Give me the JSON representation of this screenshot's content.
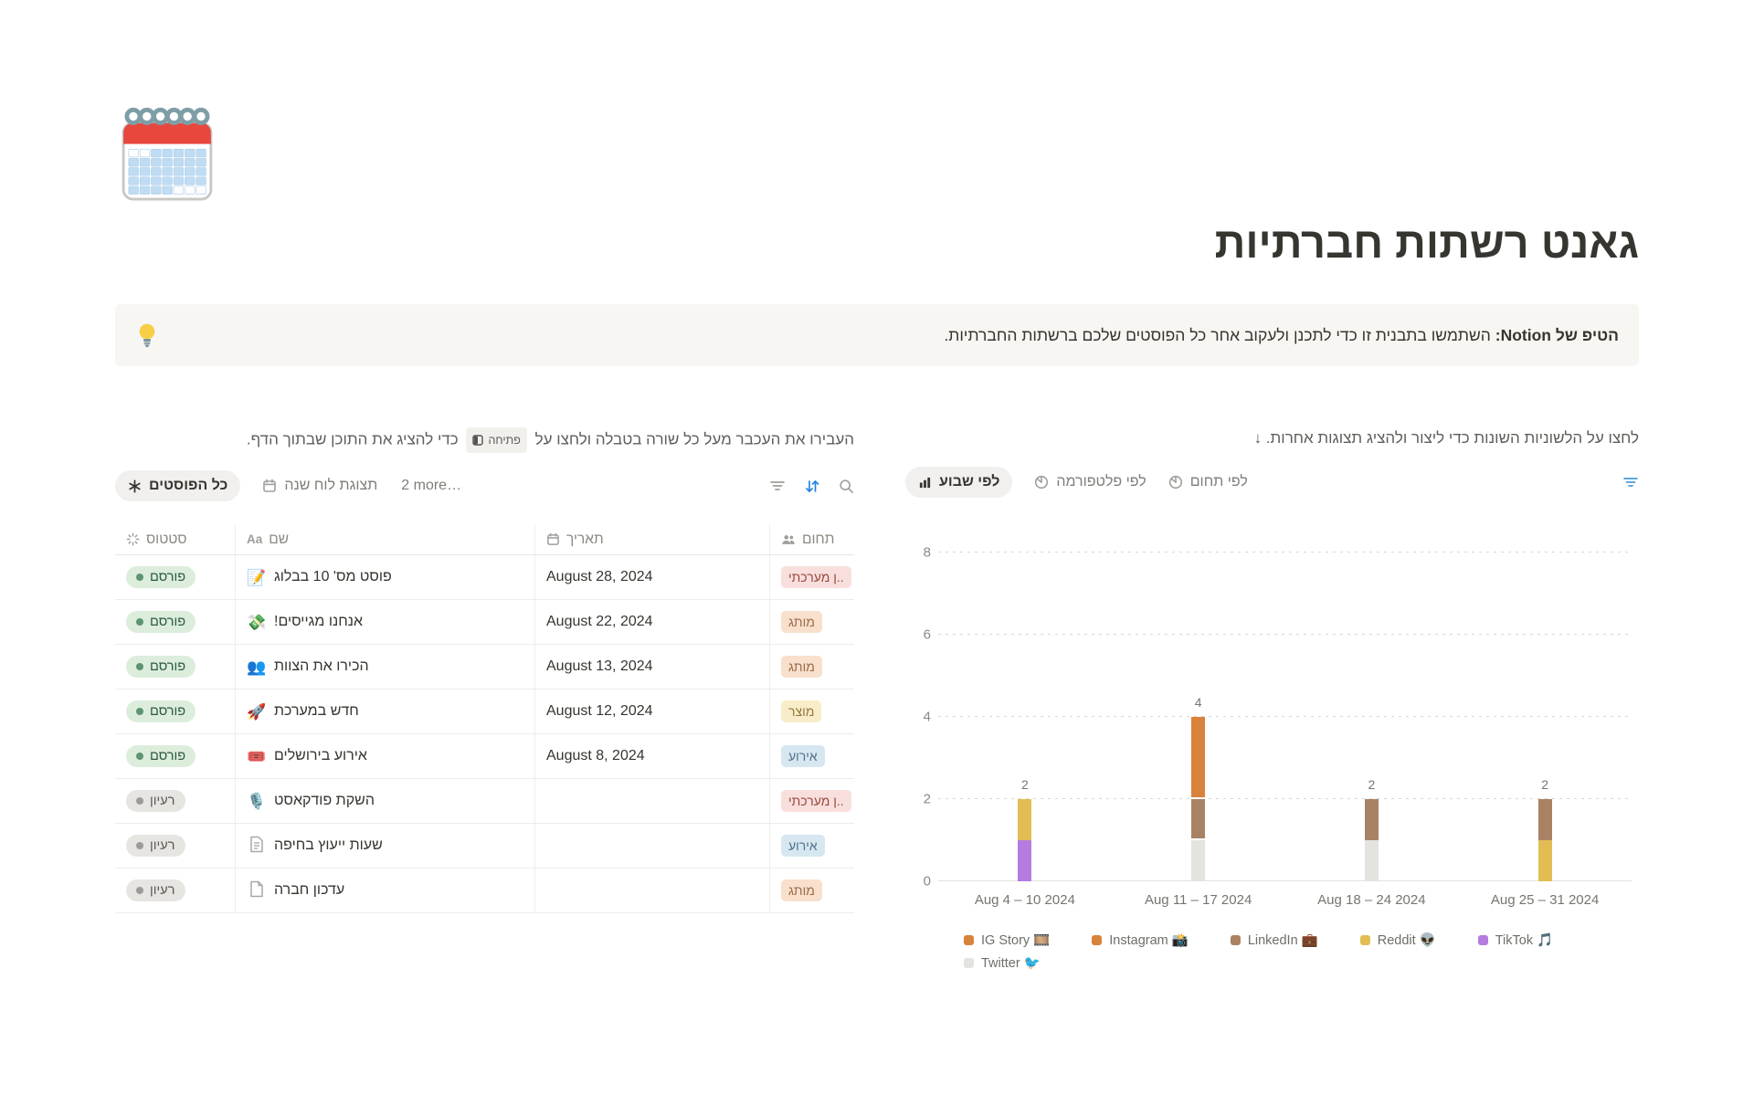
{
  "page": {
    "icon": "spiral-calendar-icon",
    "title": "גאנט רשתות חברתיות",
    "callout": {
      "icon": "light-bulb-icon",
      "emoji": "💡",
      "bold": "הטיפ של Notion:",
      "text": " השתמשו בתבנית זו כדי לתכנן ולעקוב אחר כל הפוסטים שלכם ברשתות החברתיות."
    }
  },
  "table_section": {
    "instruction": {
      "before": "העבירו את העכבר מעל כל שורה בטבלה ולחצו על",
      "badge": "פתיחה",
      "badge_icon": "open-peek-icon",
      "after": "כדי להציג את התוכן שבתוך הדף."
    },
    "tabs": [
      {
        "label": "כל הפוסטים",
        "icon": "asterisk-icon",
        "active": true
      },
      {
        "label": "תצוגת לוח שנה",
        "icon": "calendar-icon",
        "active": false
      }
    ],
    "more_label": "2 more…",
    "toolbar_icons": [
      "filter-icon",
      "sort-icon",
      "search-icon"
    ],
    "sort_icon_color": "#2383E2",
    "columns": [
      {
        "label": "סטטוס",
        "icon": "status-spinner-icon"
      },
      {
        "label": "שם",
        "icon": "text-aa-icon"
      },
      {
        "label": "תאריך",
        "icon": "calendar-icon"
      },
      {
        "label": "תחום",
        "icon": "people-icon"
      }
    ],
    "rows": [
      {
        "status": "פורסם",
        "status_color": "green",
        "icon_type": "emoji",
        "icon_name": "memo-icon",
        "icon_char": "📝",
        "name": "פוסט מס' 10 בבלוג",
        "date": "August 28, 2024",
        "tag": "..ן מערכתי",
        "tag_color": "red"
      },
      {
        "status": "פורסם",
        "status_color": "green",
        "icon_type": "emoji",
        "icon_name": "money-with-wings-icon",
        "icon_char": "💸",
        "name": "אנחנו מגייסים!",
        "date": "August 22, 2024",
        "tag": "מותג",
        "tag_color": "orange"
      },
      {
        "status": "פורסם",
        "status_color": "green",
        "icon_type": "emoji",
        "icon_name": "busts-in-silhouette-icon",
        "icon_char": "👥",
        "name": "הכירו את הצוות",
        "date": "August 13, 2024",
        "tag": "מותג",
        "tag_color": "orange"
      },
      {
        "status": "פורסם",
        "status_color": "green",
        "icon_type": "emoji",
        "icon_name": "rocket-icon",
        "icon_char": "🚀",
        "name": "חדש במערכת",
        "date": "August 12, 2024",
        "tag": "מוצר",
        "tag_color": "yellow"
      },
      {
        "status": "פורסם",
        "status_color": "green",
        "icon_type": "emoji",
        "icon_name": "ticket-icon",
        "icon_char": "🎟️",
        "name": "אירוע בירושלים",
        "date": "August 8, 2024",
        "tag": "אירוע",
        "tag_color": "blue"
      },
      {
        "status": "רעיון",
        "status_color": "gray",
        "icon_type": "emoji",
        "icon_name": "microphone-icon",
        "icon_char": "🎙️",
        "name": "השקת פודקאסט",
        "date": "",
        "tag": "..ן מערכתי",
        "tag_color": "red"
      },
      {
        "status": "רעיון",
        "status_color": "gray",
        "icon_type": "page-lines",
        "icon_name": "page-with-text-icon",
        "icon_char": "",
        "name": "שעות ייעוץ בחיפה",
        "date": "",
        "tag": "אירוע",
        "tag_color": "blue"
      },
      {
        "status": "רעיון",
        "status_color": "gray",
        "icon_type": "page-blank",
        "icon_name": "blank-page-icon",
        "icon_char": "",
        "name": "עדכון חברה",
        "date": "",
        "tag": "מותג",
        "tag_color": "orange"
      }
    ]
  },
  "chart_section": {
    "instruction": "לחצו על הלשוניות השונות כדי ליצור ולהציג תצוגות אחרות. ↓",
    "tabs": [
      {
        "label": "לפי שבוע",
        "icon": "bar-chart-icon",
        "active": true
      },
      {
        "label": "לפי פלטפורמה",
        "icon": "pie-chart-icon",
        "active": false
      },
      {
        "label": "לפי תחום",
        "icon": "pie-chart-icon",
        "active": false
      }
    ],
    "toolbar_icons": [
      "filter-icon"
    ],
    "filter_icon_color": "#4B9BD5"
  },
  "chart_data": {
    "type": "bar",
    "stacked": true,
    "categories": [
      "Aug 4 – 10 2024",
      "Aug 11 – 17 2024",
      "Aug 18 – 24 2024",
      "Aug 25 – 31 2024"
    ],
    "series": [
      {
        "name": "IG Story",
        "emoji": "🎞️",
        "color": "#D9823B",
        "values": [
          0,
          1,
          0,
          0
        ]
      },
      {
        "name": "Instagram",
        "emoji": "📸",
        "color": "#D9823B",
        "values": [
          0,
          1,
          0,
          0
        ]
      },
      {
        "name": "LinkedIn",
        "emoji": "💼",
        "color": "#A98263",
        "values": [
          0,
          1,
          1,
          1
        ]
      },
      {
        "name": "Reddit",
        "emoji": "👽",
        "color": "#E3BD54",
        "values": [
          1,
          0,
          0,
          1
        ]
      },
      {
        "name": "TikTok",
        "emoji": "🎵",
        "color": "#B47CDF",
        "values": [
          1,
          0,
          0,
          0
        ]
      },
      {
        "name": "Twitter",
        "emoji": "🐦",
        "color": "#E4E3E0",
        "values": [
          0,
          1,
          1,
          0
        ]
      }
    ],
    "stack_order_bottom_to_top": [
      "Twitter",
      "TikTok",
      "Reddit",
      "LinkedIn",
      "Instagram",
      "IG Story"
    ],
    "totals": [
      2,
      4,
      2,
      2
    ],
    "title": "",
    "xlabel": "",
    "ylabel": "",
    "ylim": [
      0,
      8
    ],
    "yticks": [
      0,
      2,
      4,
      6,
      8
    ],
    "grid": "dotted-horizontal",
    "legend_position": "bottom"
  }
}
